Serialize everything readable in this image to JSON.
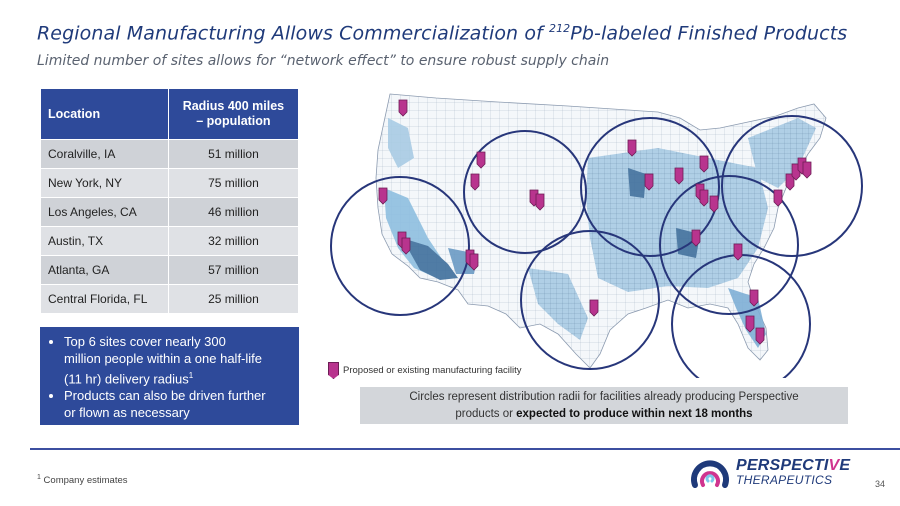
{
  "title": {
    "prefix": "Regional Manufacturing Allows Commercialization of ",
    "superscript": "212",
    "suffix": "Pb-labeled Finished Products"
  },
  "subtitle": "Limited number of sites allows for “network effect” to ensure robust supply chain",
  "table": {
    "headers": [
      "Location",
      "Radius 400 miles",
      "– population"
    ],
    "rows": [
      {
        "location": "Coralville, IA",
        "population": "51 million"
      },
      {
        "location": "New York, NY",
        "population": "75 million"
      },
      {
        "location": "Los Angeles, CA",
        "population": "46 million"
      },
      {
        "location": "Austin, TX",
        "population": "32 million"
      },
      {
        "location": "Atlanta, GA",
        "population": "57 million"
      },
      {
        "location": "Central Florida, FL",
        "population": "25 million"
      }
    ]
  },
  "bullets": {
    "b1_lines": [
      "Top 6 sites cover nearly 300",
      "million people within a one half-life",
      "(11 hr) delivery radius"
    ],
    "b1_sup": "1",
    "b2_lines": [
      "Products can also be driven further",
      "or flown as necessary"
    ]
  },
  "legend": "Proposed or existing manufacturing facility",
  "caption": {
    "line1": "Circles represent distribution radii for facilities already producing Perspective",
    "line2_plain": "products or ",
    "line2_bold": "expected to produce within next 18 months"
  },
  "footnote": {
    "sup": "1",
    "text": " Company estimates"
  },
  "logo": {
    "name_a": "PERSPECTI",
    "name_b": "V",
    "name_c": "E",
    "sub": "THERAPEUTICS"
  },
  "page_number": "34",
  "colors": {
    "navy": "#2e4a9a",
    "pin": "#b8348e",
    "circle": "#27367a",
    "map_light": "#9ec5e2",
    "map_dark": "#3f6f9c"
  }
}
